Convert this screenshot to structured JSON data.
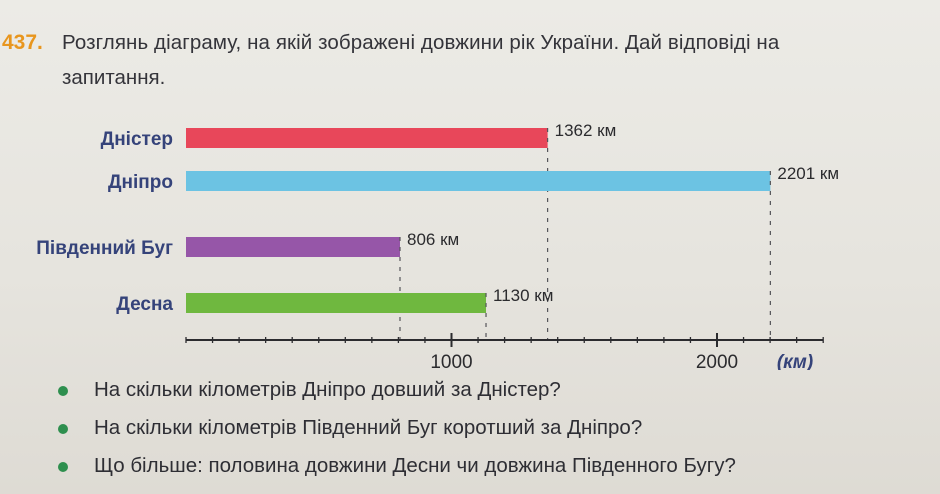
{
  "task": {
    "number": "437",
    "line1": "Розглянь діаграму, на якій зображені довжини рік України. Дай відповіді на",
    "line2": "запитання."
  },
  "chart_data": {
    "type": "bar",
    "orientation": "horizontal",
    "categories": [
      "Дністер",
      "Дніпро",
      "Південний Буг",
      "Десна"
    ],
    "values": [
      1362,
      2201,
      806,
      1130
    ],
    "value_labels": [
      "1362 км",
      "2201 км",
      "806 км",
      "1130 км"
    ],
    "colors": [
      "#e8475a",
      "#6cc3e3",
      "#9656a8",
      "#6fb83f"
    ],
    "xticks": [
      1000,
      2000
    ],
    "xtick_labels": [
      "1000",
      "2000"
    ],
    "xlim": [
      0,
      2400
    ],
    "minor_tick_step": 100,
    "unit_label": "(км)",
    "title": "",
    "xlabel": "",
    "ylabel": "",
    "grid": false
  },
  "questions": [
    "На скільки кілометрів Дніпро довший за Дністер?",
    "На скільки кілометрів Південний Буг коротший за Дніпро?",
    "Що більше: половина довжини Десни чи довжина Південного Бугу?"
  ]
}
